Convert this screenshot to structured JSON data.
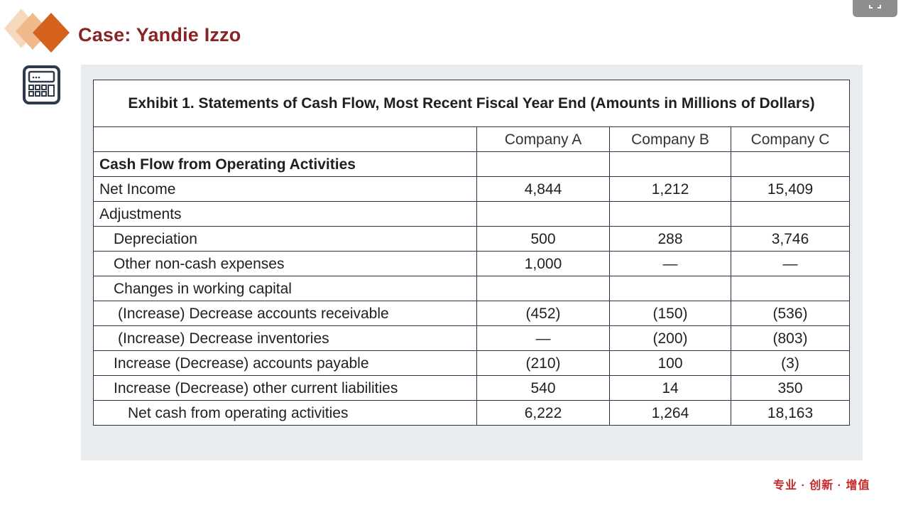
{
  "header": {
    "case_title": "Case: Yandie Izzo"
  },
  "exhibit": {
    "title": "Exhibit 1.  Statements of Cash Flow, Most Recent Fiscal Year End (Amounts in Millions of Dollars)",
    "columns": [
      "Company A",
      "Company B",
      "Company C"
    ],
    "rows": [
      {
        "label": "Cash Flow from Operating Activities",
        "style": "section",
        "values": [
          "",
          "",
          ""
        ]
      },
      {
        "label": "Net Income",
        "style": "i0",
        "values": [
          "4,844",
          "1,212",
          "15,409"
        ]
      },
      {
        "label": "Adjustments",
        "style": "i0",
        "values": [
          "",
          "",
          ""
        ]
      },
      {
        "label": "Depreciation",
        "style": "i1",
        "values": [
          "500",
          "288",
          "3,746"
        ]
      },
      {
        "label": "Other non-cash expenses",
        "style": "i1",
        "values": [
          "1,000",
          "—",
          "—"
        ]
      },
      {
        "label": "Changes in working capital",
        "style": "i1",
        "values": [
          "",
          "",
          ""
        ]
      },
      {
        "label": "(Increase) Decrease accounts receivable",
        "style": "i2",
        "values": [
          "(452)",
          "(150)",
          "(536)"
        ]
      },
      {
        "label": "(Increase) Decrease inventories",
        "style": "i2",
        "values": [
          "—",
          "(200)",
          "(803)"
        ]
      },
      {
        "label": "Increase (Decrease) accounts payable",
        "style": "i1",
        "values": [
          "(210)",
          "100",
          "(3)"
        ]
      },
      {
        "label": "Increase (Decrease) other current liabilities",
        "style": "i1",
        "values": [
          "540",
          "14",
          "350"
        ]
      },
      {
        "label": "Net cash from operating activities",
        "style": "i3",
        "values": [
          "6,222",
          "1,264",
          "18,163"
        ]
      }
    ]
  },
  "footer": {
    "slogan": "专业 · 创新 · 增值"
  },
  "icons": {
    "logo": "diamond-logo-icon",
    "calculator": "calculator-icon",
    "fullscreen": "fullscreen-icon"
  },
  "colors": {
    "title_red": "#8a2323",
    "logo_orange": "#d4621c",
    "logo_light": "#f3c9a4",
    "table_border": "#2b3445",
    "panel_bg": "#e9ecef",
    "slogan_red": "#c62828"
  }
}
